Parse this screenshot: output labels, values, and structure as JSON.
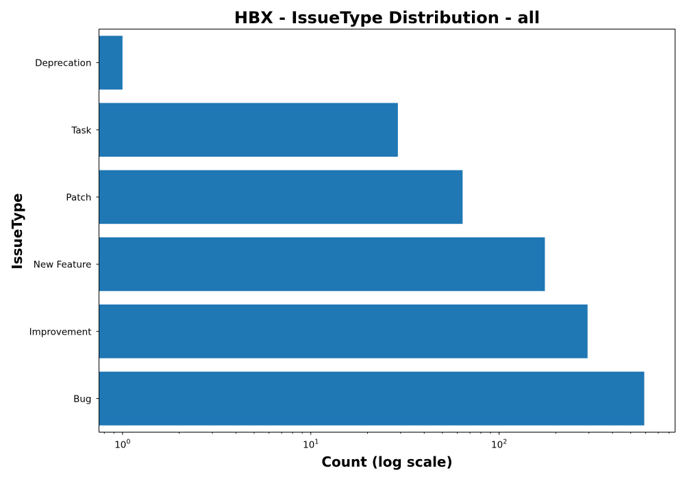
{
  "chart_data": {
    "type": "bar",
    "orientation": "horizontal",
    "title": "HBX - IssueType Distribution - all",
    "xlabel": "Count (log scale)",
    "ylabel": "IssueType",
    "xscale": "log",
    "xlim": [
      0.75,
      860
    ],
    "categories": [
      "Bug",
      "Improvement",
      "New Feature",
      "Patch",
      "Task",
      "Deprecation"
    ],
    "values": [
      590,
      295,
      175,
      64,
      29,
      1
    ],
    "x_ticks": [
      {
        "value": 1,
        "base": "10",
        "exp": "0"
      },
      {
        "value": 10,
        "base": "10",
        "exp": "1"
      },
      {
        "value": 100,
        "base": "10",
        "exp": "2"
      }
    ],
    "grid": false,
    "legend": "none",
    "bar_color": "#1f77b4"
  }
}
